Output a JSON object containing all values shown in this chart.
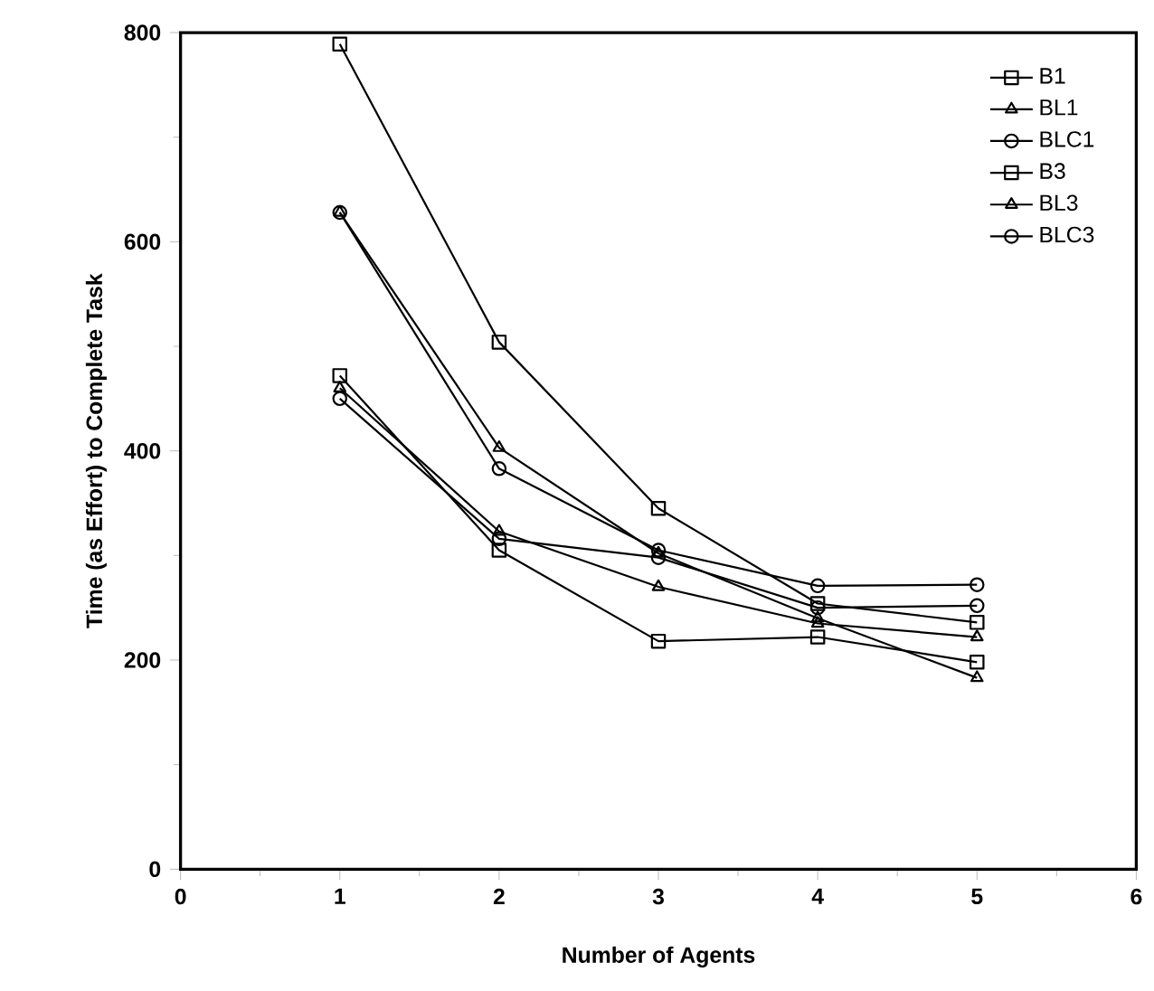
{
  "chart_data": {
    "type": "line",
    "xlabel": "Number of Agents",
    "ylabel": "Time (as Effort) to Complete Task",
    "x": [
      1,
      2,
      3,
      4,
      5
    ],
    "xlim": [
      0,
      6
    ],
    "xticks": [
      0,
      1,
      2,
      3,
      4,
      5,
      6
    ],
    "ylim": [
      0,
      800
    ],
    "yticks": [
      0,
      200,
      400,
      600,
      800
    ],
    "grid": false,
    "legend": "top right",
    "line_style": "solid",
    "series": [
      {
        "name": "B1",
        "color": "#000000",
        "marker": "square",
        "values": [
          789,
          504,
          345,
          254,
          236
        ]
      },
      {
        "name": "BL1",
        "color": "#000000",
        "marker": "triangle",
        "values": [
          628,
          403,
          302,
          240,
          183
        ]
      },
      {
        "name": "BLC1",
        "color": "#000000",
        "marker": "circle",
        "values": [
          628,
          383,
          305,
          271,
          272
        ]
      },
      {
        "name": "B3",
        "color": "#000000",
        "marker": "square",
        "values": [
          472,
          305,
          218,
          222,
          198
        ]
      },
      {
        "name": "BL3",
        "color": "#000000",
        "marker": "triangle",
        "values": [
          460,
          323,
          270,
          235,
          222
        ]
      },
      {
        "name": "BLC3",
        "color": "#000000",
        "marker": "circle",
        "values": [
          450,
          316,
          298,
          250,
          252
        ]
      }
    ]
  }
}
